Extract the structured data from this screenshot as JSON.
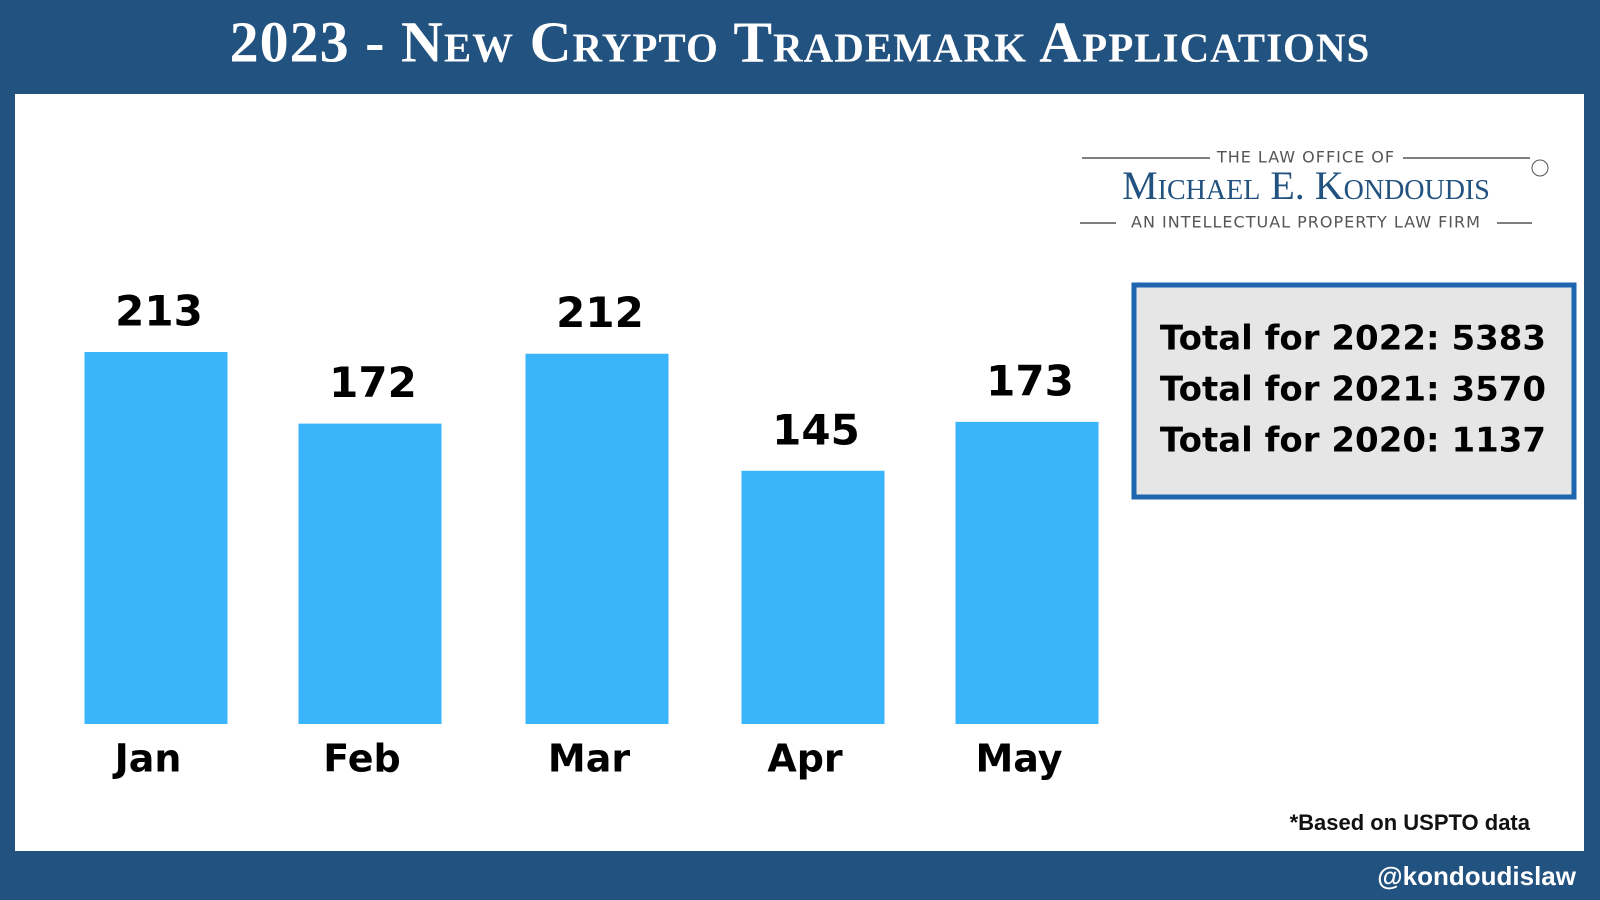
{
  "chart_data": {
    "type": "bar",
    "title": "2023 - New Crypto Trademark Applications",
    "categories": [
      "Jan",
      "Feb",
      "Mar",
      "Apr",
      "May"
    ],
    "values": [
      213,
      172,
      212,
      145,
      173
    ],
    "color": "#3ab4fb",
    "annotations": [
      "Total for 2022: 5383",
      "Total for 2021: 3570",
      "Total for 2020: 1137"
    ],
    "note": "*Based on USPTO data"
  },
  "logo": {
    "line1": "THE LAW OFFICE OF",
    "name": "Michael E. Kondoudis",
    "line2": "AN INTELLECTUAL PROPERTY LAW FIRM"
  },
  "footer": {
    "handle": "@kondoudislaw"
  }
}
